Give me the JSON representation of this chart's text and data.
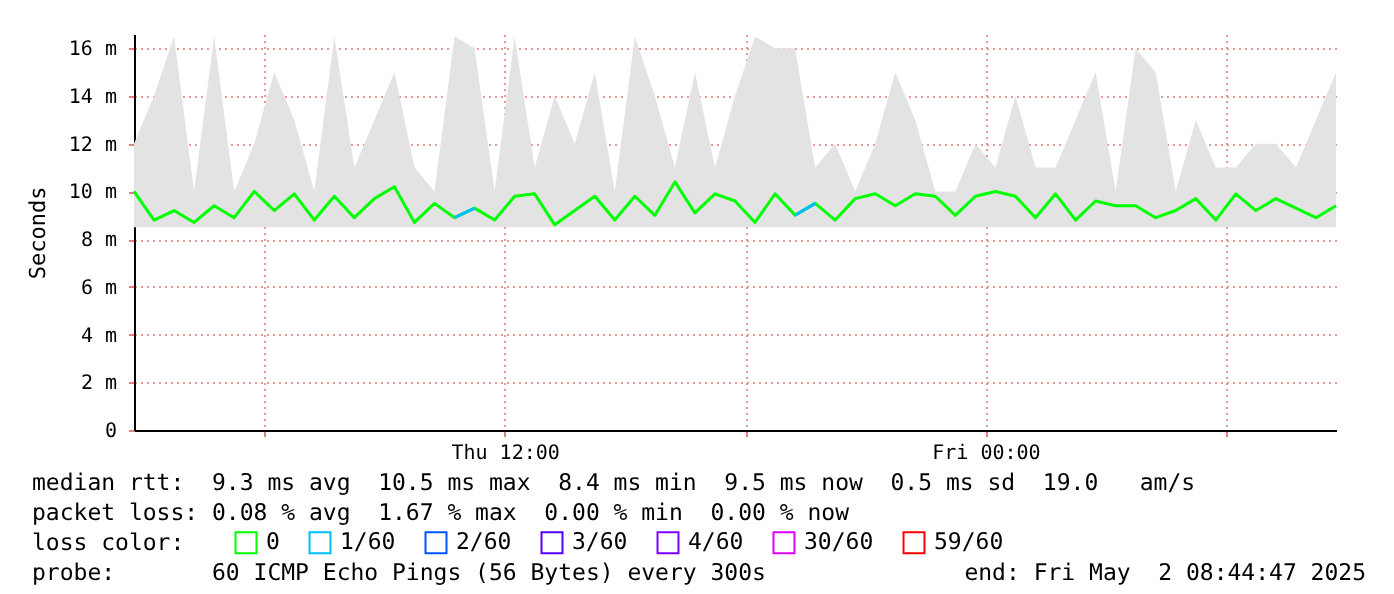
{
  "chart_data": {
    "type": "line",
    "ylabel": "Seconds",
    "legend_title": "loss color:",
    "legend": "bottom",
    "grid": true,
    "x": [
      "2025-05-01T02:45",
      "2025-05-01T03:15",
      "2025-05-01T03:45",
      "2025-05-01T04:15",
      "2025-05-01T04:45",
      "2025-05-01T05:15",
      "2025-05-01T05:45",
      "2025-05-01T06:15",
      "2025-05-01T06:45",
      "2025-05-01T07:15",
      "2025-05-01T07:45",
      "2025-05-01T08:15",
      "2025-05-01T08:45",
      "2025-05-01T09:15",
      "2025-05-01T09:45",
      "2025-05-01T10:15",
      "2025-05-01T10:45",
      "2025-05-01T11:15",
      "2025-05-01T11:45",
      "2025-05-01T12:15",
      "2025-05-01T12:45",
      "2025-05-01T13:15",
      "2025-05-01T13:45",
      "2025-05-01T14:15",
      "2025-05-01T14:45",
      "2025-05-01T15:15",
      "2025-05-01T15:45",
      "2025-05-01T16:15",
      "2025-05-01T16:45",
      "2025-05-01T17:15",
      "2025-05-01T17:45",
      "2025-05-01T18:15",
      "2025-05-01T18:45",
      "2025-05-01T19:15",
      "2025-05-01T19:45",
      "2025-05-01T20:15",
      "2025-05-01T20:45",
      "2025-05-01T21:15",
      "2025-05-01T21:45",
      "2025-05-01T22:15",
      "2025-05-01T22:45",
      "2025-05-01T23:15",
      "2025-05-01T23:45",
      "2025-05-02T00:15",
      "2025-05-02T00:45",
      "2025-05-02T01:15",
      "2025-05-02T01:45",
      "2025-05-02T02:15",
      "2025-05-02T02:45",
      "2025-05-02T03:15",
      "2025-05-02T03:45",
      "2025-05-02T04:15",
      "2025-05-02T04:45",
      "2025-05-02T05:15",
      "2025-05-02T05:45",
      "2025-05-02T06:15",
      "2025-05-02T06:45",
      "2025-05-02T07:15",
      "2025-05-02T07:45",
      "2025-05-02T08:15",
      "2025-05-02T08:45"
    ],
    "xlim": [
      "2025-05-01T02:45",
      "2025-05-02T08:45"
    ],
    "xticks": [
      {
        "value": "2025-05-01T06:00",
        "label": null
      },
      {
        "value": "2025-05-01T12:00",
        "label": "Thu 12:00"
      },
      {
        "value": "2025-05-01T18:00",
        "label": null
      },
      {
        "value": "2025-05-02T00:00",
        "label": "Fri 00:00"
      },
      {
        "value": "2025-05-02T06:00",
        "label": null
      }
    ],
    "ylim": [
      0,
      16.6
    ],
    "yticks": [
      0,
      {
        "value": 2,
        "label": "2 m"
      },
      {
        "value": 4,
        "label": "4 m"
      },
      {
        "value": 6,
        "label": "6 m"
      },
      {
        "value": 8,
        "label": "8 m"
      },
      {
        "value": 10,
        "label": "10 m"
      },
      {
        "value": 12,
        "label": "12 m"
      },
      {
        "value": 14,
        "label": "14 m"
      },
      {
        "value": 16,
        "label": "16 m"
      }
    ],
    "series": [
      {
        "name": "0",
        "color": "#00ff00",
        "values": [
          10.0,
          8.8,
          9.2,
          8.7,
          9.4,
          8.9,
          10.0,
          9.2,
          9.9,
          8.8,
          9.8,
          8.9,
          9.7,
          10.2,
          8.7,
          9.5,
          8.9,
          9.3,
          8.8,
          9.8,
          9.9,
          8.6,
          9.2,
          9.8,
          8.8,
          9.8,
          9.0,
          10.4,
          9.1,
          9.9,
          9.6,
          8.7,
          9.9,
          9.0,
          9.5,
          8.8,
          9.7,
          9.9,
          9.4,
          9.9,
          9.8,
          9.0,
          9.8,
          10.0,
          9.8,
          8.9,
          9.9,
          8.8,
          9.6,
          9.4,
          9.4,
          8.9,
          9.2,
          9.7,
          8.8,
          9.9,
          9.2,
          9.7,
          9.3,
          8.9,
          9.4
        ],
        "lower": [
          8.5,
          8.5,
          8.5,
          8.5,
          8.5,
          8.5,
          8.5,
          8.5,
          8.5,
          8.5,
          8.5,
          8.5,
          8.5,
          8.5,
          8.5,
          8.5,
          8.5,
          8.5,
          8.5,
          8.5,
          8.5,
          8.5,
          8.5,
          8.5,
          8.5,
          8.5,
          8.5,
          8.5,
          8.5,
          8.5,
          8.5,
          8.5,
          8.5,
          8.5,
          8.5,
          8.5,
          8.5,
          8.5,
          8.5,
          8.5,
          8.5,
          8.5,
          8.5,
          8.5,
          8.5,
          8.5,
          8.5,
          8.5,
          8.5,
          8.5,
          8.5,
          8.5,
          8.5,
          8.5,
          8.5,
          8.5,
          8.5,
          8.5,
          8.5,
          8.5,
          8.5
        ],
        "upper": [
          12,
          14,
          16.5,
          10,
          16.5,
          10,
          12,
          15,
          13,
          10,
          16.5,
          11,
          13,
          15,
          11,
          10,
          16.5,
          16,
          10,
          16.5,
          11,
          14,
          12,
          15,
          10,
          16.5,
          14,
          11,
          15,
          11,
          14,
          16.5,
          16,
          16,
          11,
          12,
          10,
          12,
          15,
          13,
          10,
          10,
          12,
          11,
          14,
          11,
          11,
          13,
          15,
          10,
          16,
          15,
          10,
          13,
          11,
          11,
          12,
          12,
          11,
          13,
          15
        ]
      },
      {
        "name": "1/60",
        "color": "#00bbff",
        "values": [
          null,
          null,
          null,
          null,
          null,
          null,
          null,
          null,
          null,
          null,
          null,
          null,
          null,
          null,
          null,
          null,
          8.9,
          9.3,
          null,
          null,
          null,
          null,
          null,
          null,
          null,
          null,
          null,
          null,
          null,
          null,
          null,
          null,
          null,
          9.0,
          9.5,
          null,
          null,
          null,
          null,
          null,
          null,
          null,
          null,
          null,
          null,
          null,
          null,
          null,
          null,
          null,
          null,
          null,
          null,
          null,
          null,
          null,
          null,
          null,
          null,
          null,
          null
        ]
      },
      {
        "name": "2/60",
        "color": "#0055ff",
        "values": [
          null,
          null,
          null,
          null,
          null,
          null,
          null,
          null,
          null,
          null,
          null,
          null,
          null,
          null,
          null,
          null,
          null,
          null,
          null,
          null,
          null,
          null,
          null,
          null,
          null,
          null,
          null,
          null,
          null,
          null,
          null,
          null,
          null,
          null,
          null,
          null,
          null,
          null,
          null,
          null,
          null,
          null,
          null,
          null,
          null,
          null,
          null,
          null,
          null,
          null,
          null,
          null,
          null,
          null,
          null,
          null,
          null,
          null,
          null,
          null,
          null
        ]
      },
      {
        "name": "3/60",
        "color": "#5500ff",
        "values": [
          null,
          null,
          null,
          null,
          null,
          null,
          null,
          null,
          null,
          null,
          null,
          null,
          null,
          null,
          null,
          null,
          null,
          null,
          null,
          null,
          null,
          null,
          null,
          null,
          null,
          null,
          null,
          null,
          null,
          null,
          null,
          null,
          null,
          null,
          null,
          null,
          null,
          null,
          null,
          null,
          null,
          null,
          null,
          null,
          null,
          null,
          null,
          null,
          null,
          null,
          null,
          null,
          null,
          null,
          null,
          null,
          null,
          null,
          null,
          null,
          null
        ]
      },
      {
        "name": "4/60",
        "color": "#7e00ff",
        "values": [
          null,
          null,
          null,
          null,
          null,
          null,
          null,
          null,
          null,
          null,
          null,
          null,
          null,
          null,
          null,
          null,
          null,
          null,
          null,
          null,
          null,
          null,
          null,
          null,
          null,
          null,
          null,
          null,
          null,
          null,
          null,
          null,
          null,
          null,
          null,
          null,
          null,
          null,
          null,
          null,
          null,
          null,
          null,
          null,
          null,
          null,
          null,
          null,
          null,
          null,
          null,
          null,
          null,
          null,
          null,
          null,
          null,
          null,
          null,
          null,
          null
        ]
      },
      {
        "name": "30/60",
        "color": "#dd00ff",
        "values": [
          null,
          null,
          null,
          null,
          null,
          null,
          null,
          null,
          null,
          null,
          null,
          null,
          null,
          null,
          null,
          null,
          null,
          null,
          null,
          null,
          null,
          null,
          null,
          null,
          null,
          null,
          null,
          null,
          null,
          null,
          null,
          null,
          null,
          null,
          null,
          null,
          null,
          null,
          null,
          null,
          null,
          null,
          null,
          null,
          null,
          null,
          null,
          null,
          null,
          null,
          null,
          null,
          null,
          null,
          null,
          null,
          null,
          null,
          null,
          null,
          null
        ]
      },
      {
        "name": "59/60",
        "color": "#ff0000",
        "values": [
          null,
          null,
          null,
          null,
          null,
          null,
          null,
          null,
          null,
          null,
          null,
          null,
          null,
          null,
          null,
          null,
          null,
          null,
          null,
          null,
          null,
          null,
          null,
          null,
          null,
          null,
          null,
          null,
          null,
          null,
          null,
          null,
          null,
          null,
          null,
          null,
          null,
          null,
          null,
          null,
          null,
          null,
          null,
          null,
          null,
          null,
          null,
          null,
          null,
          null,
          null,
          null,
          null,
          null,
          null,
          null,
          null,
          null,
          null,
          null,
          null
        ]
      }
    ],
    "annotations": [
      "median rtt:  9.3 ms avg  10.5 ms max  8.4 ms min  9.5 ms now  0.5 ms sd  19.0   am/s",
      "packet loss: 0.08 % avg  1.67 % max  0.00 % min  0.00 % now",
      "probe:       60 ICMP Echo Pings (56 Bytes) every 300s",
      "end: Fri May  2 08:44:47 2025"
    ]
  }
}
